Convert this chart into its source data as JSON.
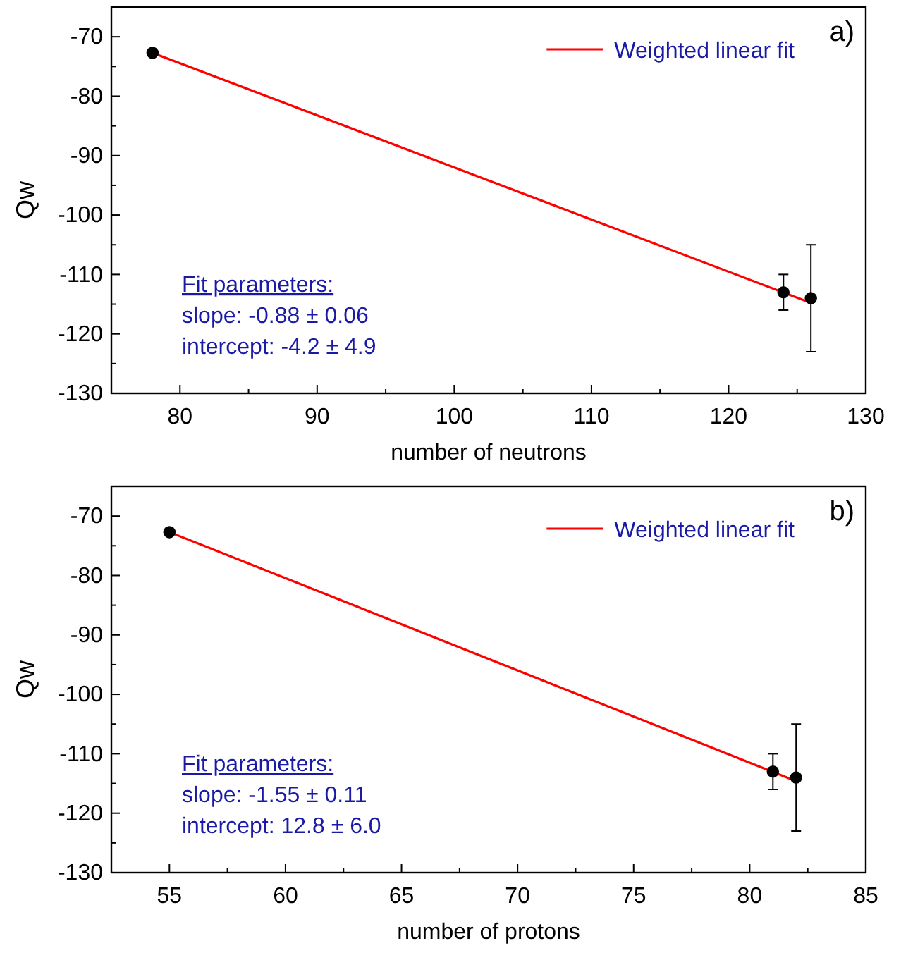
{
  "chart_data": [
    {
      "type": "scatter",
      "xlabel": "number of neutrons",
      "ylabel": "Qw",
      "xlim": [
        75,
        130
      ],
      "ylim": [
        -130,
        -65
      ],
      "xticks": [
        80,
        {
          "value": 85,
          "label": null
        },
        90,
        {
          "value": 95,
          "label": null
        },
        100,
        {
          "value": 105,
          "label": null
        },
        110,
        {
          "value": 115,
          "label": null
        },
        120,
        {
          "value": 125,
          "label": null
        },
        130
      ],
      "yticks": [
        -130,
        {
          "value": -125,
          "label": null
        },
        -120,
        {
          "value": -115,
          "label": null
        },
        -110,
        {
          "value": -105,
          "label": null
        },
        -100,
        {
          "value": -95,
          "label": null
        },
        -90,
        {
          "value": -85,
          "label": null
        },
        -80,
        {
          "value": -75,
          "label": null
        },
        -70
      ],
      "legend": "top right",
      "grid": false,
      "annotations": [
        "a)",
        "Fit parameters:",
        "slope: -0.88 ± 0.06",
        "intercept: -4.2 ± 4.9"
      ],
      "series": [
        {
          "type": "scatter",
          "color": "#000000",
          "marker": "circle",
          "x": [
            78,
            124,
            126
          ],
          "values": [
            -72.7,
            -113,
            -114
          ],
          "errors": [
            null,
            3,
            9
          ]
        },
        {
          "type": "line",
          "name": "Weighted linear fit",
          "color": "#ff0000",
          "marker": "none",
          "line_style": "solid",
          "x": [
            78,
            126
          ],
          "values": [
            -72.7,
            -114.8
          ]
        }
      ]
    },
    {
      "type": "scatter",
      "xlabel": "number of protons",
      "ylabel": "Qw",
      "xlim": [
        52.5,
        85
      ],
      "ylim": [
        -130,
        -65
      ],
      "xticks": [
        55,
        {
          "value": 57.5,
          "label": null
        },
        60,
        {
          "value": 62.5,
          "label": null
        },
        65,
        {
          "value": 67.5,
          "label": null
        },
        70,
        {
          "value": 72.5,
          "label": null
        },
        75,
        {
          "value": 77.5,
          "label": null
        },
        80,
        {
          "value": 82.5,
          "label": null
        },
        85
      ],
      "yticks": [
        -130,
        {
          "value": -125,
          "label": null
        },
        -120,
        {
          "value": -115,
          "label": null
        },
        -110,
        {
          "value": -105,
          "label": null
        },
        -100,
        {
          "value": -95,
          "label": null
        },
        -90,
        {
          "value": -85,
          "label": null
        },
        -80,
        {
          "value": -75,
          "label": null
        },
        -70
      ],
      "legend": "top right",
      "grid": false,
      "annotations": [
        "b)",
        "Fit parameters:",
        "slope: -1.55 ± 0.11",
        "intercept: 12.8 ± 6.0"
      ],
      "series": [
        {
          "type": "scatter",
          "color": "#000000",
          "marker": "circle",
          "x": [
            55,
            81,
            82
          ],
          "values": [
            -72.7,
            -113,
            -114
          ],
          "errors": [
            null,
            3,
            9
          ]
        },
        {
          "type": "line",
          "name": "Weighted linear fit",
          "color": "#ff0000",
          "marker": "none",
          "line_style": "solid",
          "x": [
            55,
            82
          ],
          "values": [
            -72.7,
            -114.6
          ]
        }
      ]
    }
  ]
}
